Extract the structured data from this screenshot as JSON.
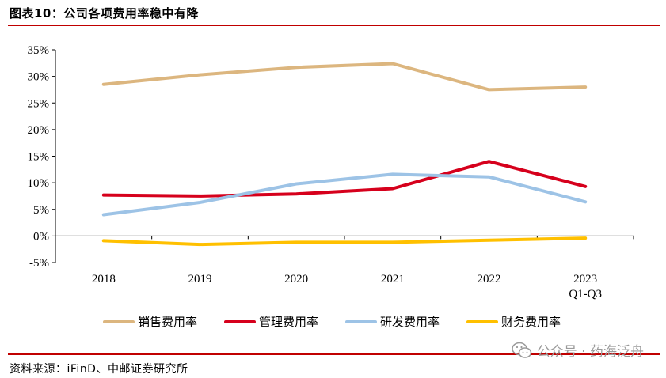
{
  "figure": {
    "title": "图表10：公司各项费用率稳中有降",
    "source": "资料来源：iFinD、中邮证券研究所",
    "watermark": "公众号 · 药海泛舟",
    "watermark_icon": "wechat-icon"
  },
  "chart_data": {
    "type": "line",
    "title": "",
    "xlabel": "",
    "ylabel": "",
    "categories": [
      "2018",
      "2019",
      "2020",
      "2021",
      "2022",
      "2023 Q1-Q3"
    ],
    "category_labels": [
      [
        "2018"
      ],
      [
        "2019"
      ],
      [
        "2020"
      ],
      [
        "2021"
      ],
      [
        "2022"
      ],
      [
        "2023",
        "Q1-Q3"
      ]
    ],
    "ylim": [
      -5,
      35
    ],
    "yticks": [
      35,
      30,
      25,
      20,
      15,
      10,
      5,
      0,
      -5
    ],
    "ytick_labels": [
      "35%",
      "30%",
      "25%",
      "20%",
      "15%",
      "10%",
      "5%",
      "0%",
      "-5%"
    ],
    "grid": false,
    "legend": "bottom",
    "series": [
      {
        "name": "销售费用率",
        "color": "#dcb67f",
        "values": [
          28.5,
          30.3,
          31.7,
          32.4,
          27.5,
          28.0
        ]
      },
      {
        "name": "管理费用率",
        "color": "#d6001c",
        "values": [
          7.7,
          7.5,
          7.9,
          8.9,
          14.0,
          9.3
        ]
      },
      {
        "name": "研发费用率",
        "color": "#9dc3e6",
        "values": [
          4.0,
          6.3,
          9.8,
          11.6,
          11.1,
          6.4
        ]
      },
      {
        "name": "财务费用率",
        "color": "#ffc000",
        "values": [
          -0.9,
          -1.6,
          -1.2,
          -1.2,
          -0.8,
          -0.4
        ]
      }
    ]
  }
}
